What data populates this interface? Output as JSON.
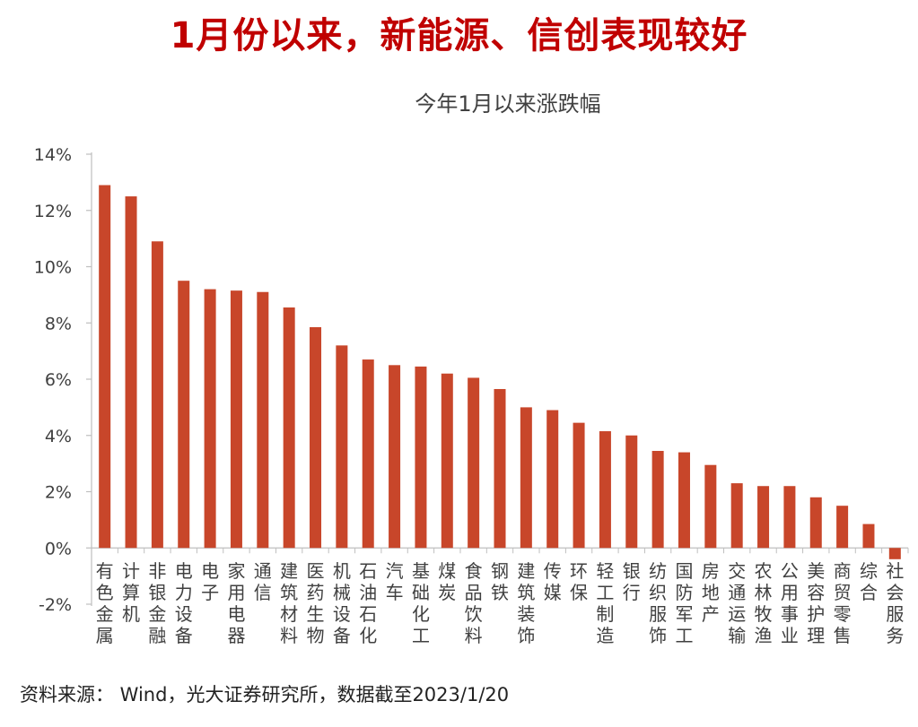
{
  "headline": "1月份以来，新能源、信创表现较好",
  "source": "资料来源： Wind，光大证券研究所，数据截至2023/1/20",
  "colors": {
    "headline": "#c00000",
    "bar": "#c8462a",
    "axis": "#bfbfbf",
    "text": "#404040"
  },
  "chart_data": {
    "type": "bar",
    "title": "今年1月以来涨跌幅",
    "xlabel": "",
    "ylabel": "",
    "ylim": [
      -2,
      14
    ],
    "yticks": [
      -2,
      0,
      2,
      4,
      6,
      8,
      10,
      12,
      14
    ],
    "ytick_labels": [
      "-2%",
      "0%",
      "2%",
      "4%",
      "6%",
      "8%",
      "10%",
      "12%",
      "14%"
    ],
    "grid": false,
    "legend": "none",
    "categories": [
      "有色金属",
      "计算机",
      "非银金融",
      "电力设备",
      "电子",
      "家用电器",
      "通信",
      "建筑材料",
      "医药生物",
      "机械设备",
      "石油石化",
      "汽车",
      "基础化工",
      "煤炭",
      "食品饮料",
      "钢铁",
      "建筑装饰",
      "传媒",
      "环保",
      "轻工制造",
      "银行",
      "纺织服饰",
      "国防军工",
      "房地产",
      "交通运输",
      "农林牧渔",
      "公用事业",
      "美容护理",
      "商贸零售",
      "综合",
      "社会服务"
    ],
    "values": [
      12.9,
      12.5,
      10.9,
      9.5,
      9.2,
      9.15,
      9.1,
      8.55,
      7.85,
      7.2,
      6.7,
      6.5,
      6.45,
      6.2,
      6.05,
      5.65,
      5.0,
      4.9,
      4.45,
      4.15,
      4.0,
      3.45,
      3.4,
      2.95,
      2.3,
      2.2,
      2.2,
      1.8,
      1.5,
      0.85,
      -0.4
    ]
  }
}
